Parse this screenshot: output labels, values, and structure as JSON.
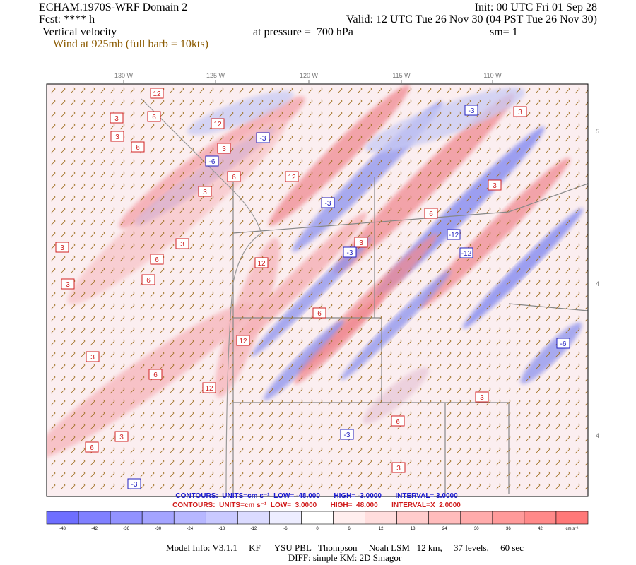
{
  "header": {
    "title": "ECHAM.1970S-WRF Domain 2",
    "init": "Init: 00 UTC Fri 01 Sep 28",
    "forecast": "Fcst: **** h",
    "valid": "Valid: 12 UTC Tue 26 Nov 30 (04 PST Tue 26 Nov 30)",
    "field": "Vertical velocity",
    "pressure": "at pressure =  700 hPa",
    "smoothing": "sm= 1",
    "wind": "Wind at 925mb (full barb = 10kts)"
  },
  "map": {
    "longitude_labels": [
      "130 W",
      "125 W",
      "120 W",
      "115 W",
      "110 W"
    ],
    "latitude_labels": [
      "5",
      "4",
      "4"
    ],
    "contour_labels": [
      "12",
      "3",
      "6",
      "3",
      "6",
      "12",
      "-3",
      "3",
      "6",
      "3",
      "-6",
      "12",
      "3",
      "6",
      "-3",
      "3",
      "12",
      "6",
      "3",
      "-12",
      "6",
      "3",
      "-3",
      "12",
      "3",
      "-6",
      "6",
      "3",
      "12",
      "-3",
      "6",
      "3",
      "-12",
      "3",
      "6",
      "-3",
      "3",
      "6",
      "3",
      "-3"
    ]
  },
  "contour_info": {
    "negative": "CONTOURS:  UNITS=cm s⁻¹  LOW= -48.000       HIGH= -3.0000       INTERVAL= 3.0000",
    "positive": "CONTOURS:  UNITS=cm s⁻¹  LOW=  3.0000       HIGH=  48.000       INTERVAL=X  2.0000"
  },
  "color_bar": {
    "labels": [
      "-48",
      "-42",
      "-36",
      "-30",
      "-24",
      "-18",
      "-12",
      "-6",
      "0",
      "6",
      "12",
      "18",
      "24",
      "30",
      "36",
      "42"
    ],
    "units": "cm s⁻¹"
  },
  "footer": {
    "model_info": "Model Info: V3.1.1     KF      YSU PBL   Thompson     Noah LSM   12 km,     37 levels,     60 sec",
    "diff": "DIFF: simple KM: 2D Smagor"
  }
}
